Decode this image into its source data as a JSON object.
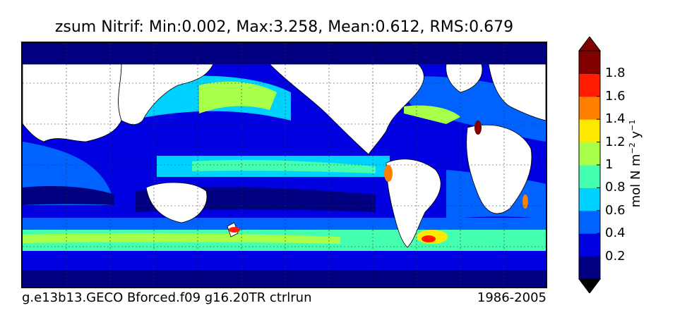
{
  "title": "zsum Nitrif: Min:0.002, Max:3.258, Mean:0.612, RMS:0.679",
  "footer": {
    "left": "g.e13b13.GECO Bforced.f09 g16.20TR ctrlrun",
    "right": "1986-2005"
  },
  "colorbar": {
    "label": "mol N m",
    "label_exp1": "−2",
    "label_mid": " y",
    "label_exp2": "−1",
    "ticks": [
      "1.8",
      "1.6",
      "1.4",
      "1.2",
      "1",
      "0.8",
      "0.6",
      "0.4",
      "0.2"
    ],
    "levels": [
      0.0,
      0.2,
      0.4,
      0.6,
      0.8,
      1.0,
      1.2,
      1.4,
      1.6,
      1.8,
      2.0
    ],
    "colors": [
      "#000080",
      "#0000e0",
      "#0062ff",
      "#00d2ff",
      "#44ffb0",
      "#a8ff4a",
      "#ffe800",
      "#ff8000",
      "#ff1c00",
      "#800000"
    ],
    "extend": "both"
  },
  "map": {
    "projection": "equirectangular",
    "center_longitude": "180E",
    "land_color": "#ffffff",
    "grid": "dotted"
  }
}
